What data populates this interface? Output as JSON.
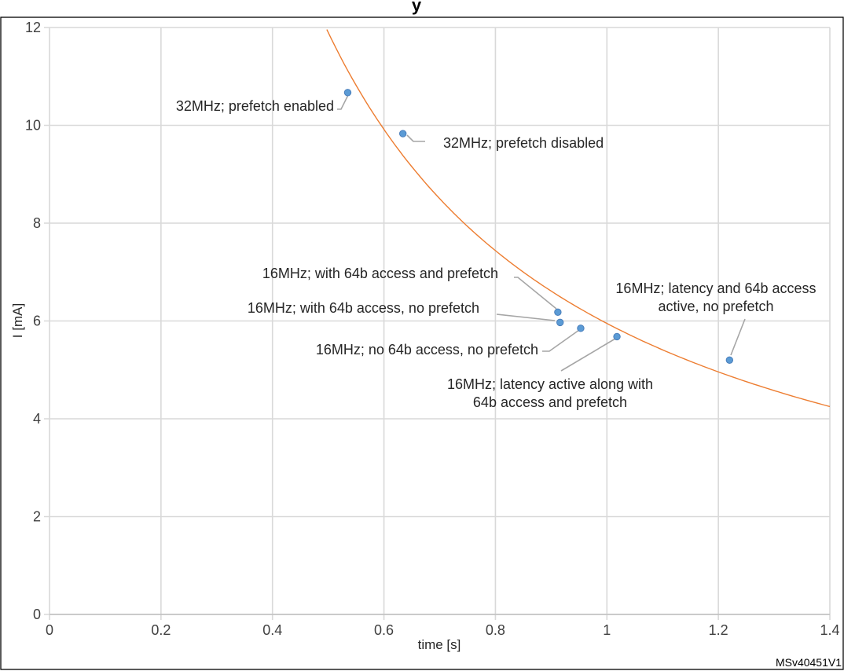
{
  "figure_id": "MSv40451V1",
  "title_fragment": "y",
  "colors": {
    "points": "#5b9bd5",
    "fit_line": "#ed7d31",
    "grid": "#d9d9d9"
  },
  "chart_data": {
    "type": "scatter",
    "title": "",
    "xlabel": "time [s]",
    "ylabel": "I [mA]",
    "xlim": [
      0,
      1.4
    ],
    "ylim": [
      0,
      12
    ],
    "x_ticks": [
      "0",
      "0.2",
      "0.4",
      "0.6",
      "0.8",
      "1",
      "1.2",
      "1.4"
    ],
    "y_ticks": [
      "0",
      "2",
      "4",
      "6",
      "8",
      "10",
      "12"
    ],
    "grid": true,
    "points": [
      {
        "x": 0.535,
        "y": 10.67,
        "label_lines": [
          "32MHz; prefetch enabled"
        ]
      },
      {
        "x": 0.634,
        "y": 9.83,
        "label_lines": [
          "32MHz; prefetch disabled"
        ]
      },
      {
        "x": 0.912,
        "y": 6.18,
        "label_lines": [
          "16MHz; with 64b access and prefetch"
        ]
      },
      {
        "x": 0.916,
        "y": 5.97,
        "label_lines": [
          "16MHz; with 64b access, no prefetch"
        ]
      },
      {
        "x": 0.953,
        "y": 5.85,
        "label_lines": [
          "16MHz; no 64b access, no prefetch"
        ]
      },
      {
        "x": 1.018,
        "y": 5.68,
        "label_lines": [
          "16MHz; latency active along with",
          "64b access and prefetch"
        ]
      },
      {
        "x": 1.22,
        "y": 5.2,
        "label_lines": [
          "16MHz; latency and 64b access",
          "active, no prefetch"
        ]
      }
    ],
    "trendline": {
      "type": "power",
      "coefficient": 5.95,
      "exponent": -1.0,
      "x_from": 0.49,
      "x_to": 1.4
    }
  }
}
